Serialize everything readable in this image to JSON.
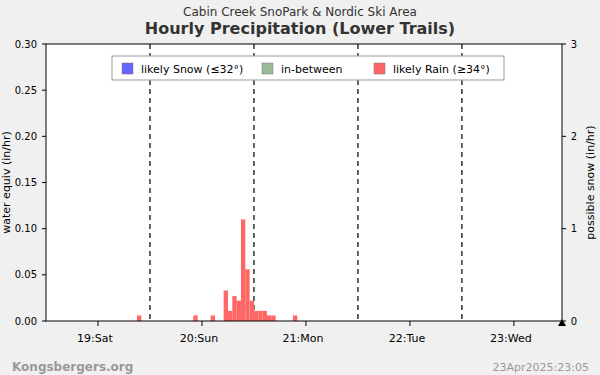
{
  "chart_data": {
    "type": "bar",
    "subtitle": "Cabin Creek SnoPark & Nordic Ski Area",
    "title": "Hourly Precipitation (Lower Trails)",
    "y_label": "water equiv (in/hr)",
    "y2_label": "possible snow (in/hr)",
    "x": [
      21,
      34,
      38,
      41,
      42,
      43,
      44,
      45,
      46,
      47,
      48,
      49,
      50,
      51,
      52,
      57
    ],
    "series": [
      {
        "name": "likely Snow (≤32°)",
        "color": "#6666ff",
        "values": [
          0,
          0,
          0,
          0,
          0,
          0,
          0,
          0,
          0,
          0,
          0,
          0,
          0,
          0,
          0,
          0
        ]
      },
      {
        "name": "in-between",
        "color": "#99bb99",
        "values": [
          0,
          0,
          0,
          0,
          0,
          0,
          0,
          0,
          0,
          0,
          0,
          0,
          0,
          0,
          0,
          0
        ]
      },
      {
        "name": "likely Rain (≥34°)",
        "color": "#ff6666",
        "values": [
          0.006,
          0.006,
          0.006,
          0.033,
          0.011,
          0.027,
          0.022,
          0.11,
          0.056,
          0.022,
          0.011,
          0.011,
          0.011,
          0.006,
          0.006,
          0.006
        ]
      }
    ],
    "stacked": true,
    "xlim": [
      0,
      119.1
    ],
    "xticks": [
      {
        "value": 12,
        "label": "19:Sat"
      },
      {
        "value": 36,
        "label": "20:Sun"
      },
      {
        "value": 60,
        "label": "21:Mon"
      },
      {
        "value": 84,
        "label": "22:Tue"
      },
      {
        "value": 108,
        "label": "23:Wed"
      }
    ],
    "ylim": [
      0,
      0.3
    ],
    "yticks": [
      {
        "value": 0,
        "label": "0.00"
      },
      {
        "value": 0.05,
        "label": "0.05"
      },
      {
        "value": 0.1,
        "label": "0.10"
      },
      {
        "value": 0.15,
        "label": "0.15"
      },
      {
        "value": 0.2,
        "label": "0.20"
      },
      {
        "value": 0.25,
        "label": "0.25"
      },
      {
        "value": 0.3,
        "label": "0.30"
      }
    ],
    "y2lim": [
      0,
      3
    ],
    "y2ticks": [
      0,
      1,
      2,
      3
    ],
    "legend": "top",
    "annotations": [
      "Kongsbergers.org",
      "23Apr2025:23:05"
    ]
  }
}
